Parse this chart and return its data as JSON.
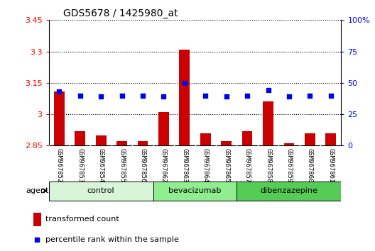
{
  "title": "GDS5678 / 1425980_at",
  "samples": [
    "GSM967852",
    "GSM967853",
    "GSM967854",
    "GSM967855",
    "GSM967856",
    "GSM967862",
    "GSM967863",
    "GSM967864",
    "GSM967865",
    "GSM967857",
    "GSM967858",
    "GSM967859",
    "GSM967860",
    "GSM967861"
  ],
  "bar_values": [
    3.11,
    2.92,
    2.9,
    2.87,
    2.87,
    3.01,
    3.31,
    2.91,
    2.87,
    2.92,
    3.06,
    2.86,
    2.91,
    2.91
  ],
  "dot_values": [
    43,
    40,
    39,
    40,
    40,
    39,
    50,
    40,
    39,
    40,
    44,
    39,
    40,
    40
  ],
  "groups": [
    {
      "label": "control",
      "start": 0,
      "end": 5,
      "color": "#d8f5d8"
    },
    {
      "label": "bevacizumab",
      "start": 5,
      "end": 9,
      "color": "#90ee90"
    },
    {
      "label": "dibenzazepine",
      "start": 9,
      "end": 14,
      "color": "#55cc55"
    }
  ],
  "bar_color": "#cc0000",
  "dot_color": "#0000ee",
  "ylim_left": [
    2.85,
    3.45
  ],
  "ylim_right": [
    0,
    100
  ],
  "yticks_left": [
    2.85,
    3.0,
    3.15,
    3.3,
    3.45
  ],
  "yticks_right": [
    0,
    25,
    50,
    75,
    100
  ],
  "ytick_labels_left": [
    "2.85",
    "3",
    "3.15",
    "3.3",
    "3.45"
  ],
  "ytick_labels_right": [
    "0",
    "25",
    "50",
    "75",
    "100%"
  ],
  "agent_label": "agent",
  "legend_bar": "transformed count",
  "legend_dot": "percentile rank within the sample",
  "plot_bg": "#ffffff",
  "xtick_bg": "#d8d8d8"
}
